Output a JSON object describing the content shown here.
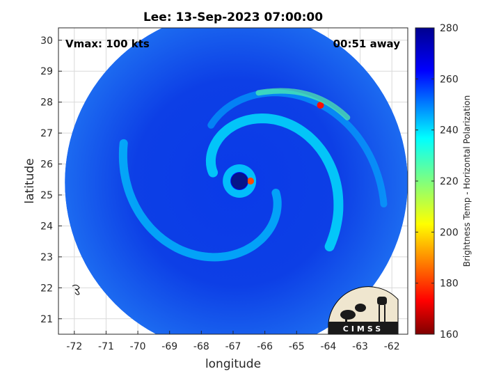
{
  "chart_data": {
    "type": "heatmap",
    "title": "Lee: 13-Sep-2023 07:00:00",
    "xlabel": "longitude",
    "ylabel": "latitude",
    "xlim": [
      -72.5,
      -61.5
    ],
    "ylim": [
      20.5,
      30.4
    ],
    "x_ticks": [
      -72,
      -71,
      -70,
      -69,
      -68,
      -67,
      -66,
      -65,
      -64,
      -63,
      -62
    ],
    "y_ticks": [
      21,
      22,
      23,
      24,
      25,
      26,
      27,
      28,
      29,
      30
    ],
    "grid": true,
    "annotations": {
      "vmax": "Vmax: 100 kts",
      "time_offset": "00:51 away"
    },
    "colorbar": {
      "label": "Brightness Temp - Horizontal Polarization",
      "range": [
        160,
        280
      ],
      "ticks": [
        160,
        180,
        200,
        220,
        240,
        260,
        280
      ],
      "colormap": "jet",
      "placement": "right"
    },
    "storm_center": {
      "lon": -66.8,
      "lat": 25.45
    },
    "swath_center": {
      "lon": -66.9,
      "lat": 25.4
    },
    "swath_radius_deg": 5.4,
    "features": [
      {
        "name": "eye",
        "lon": -66.8,
        "lat": 25.45,
        "tb": 262
      },
      {
        "name": "eyewall-max",
        "lon": -66.45,
        "lat": 25.45,
        "tb": 182
      },
      {
        "name": "outer-band-max",
        "lon": -64.25,
        "lat": 27.9,
        "tb": 175
      }
    ]
  },
  "logo": {
    "text": "CIMSS"
  },
  "colors": {
    "background": "#ffffff",
    "axis": "#262626",
    "grid": "#d9d9d9"
  }
}
